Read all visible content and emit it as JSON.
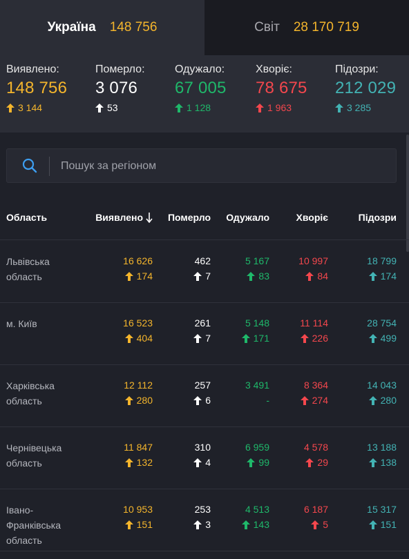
{
  "tabs": [
    {
      "label": "Україна",
      "value": "148 756"
    },
    {
      "label": "Світ",
      "value": "28 170 719"
    }
  ],
  "summary": [
    {
      "label": "Виявлено:",
      "value": "148 756",
      "delta": "3 144",
      "color": "#f4b52c"
    },
    {
      "label": "Померло:",
      "value": "3 076",
      "delta": "53",
      "color": "#ffffff"
    },
    {
      "label": "Одужало:",
      "value": "67 005",
      "delta": "1 128",
      "color": "#1fb86a"
    },
    {
      "label": "Хворіє:",
      "value": "78 675",
      "delta": "1 963",
      "color": "#f4474d"
    },
    {
      "label": "Підозри:",
      "value": "212 029",
      "delta": "3 285",
      "color": "#43b3b4"
    }
  ],
  "search": {
    "placeholder": "Пошук за регіоном",
    "icon": "search-icon"
  },
  "table": {
    "headers": {
      "region": "Область",
      "confirmed": "Виявлено",
      "dead": "Померло",
      "recovered": "Одужало",
      "sick": "Хворіє",
      "suspected": "Підозри"
    },
    "sort_icon": "arrow-down-icon",
    "rows": [
      {
        "region": "Львівська область",
        "confirmed": "16 626",
        "confirmed_d": "174",
        "dead": "462",
        "dead_d": "7",
        "recovered": "5 167",
        "recovered_d": "83",
        "sick": "10 997",
        "sick_d": "84",
        "suspected": "18 799",
        "suspected_d": "174"
      },
      {
        "region": "м. Київ",
        "confirmed": "16 523",
        "confirmed_d": "404",
        "dead": "261",
        "dead_d": "7",
        "recovered": "5 148",
        "recovered_d": "171",
        "sick": "11 114",
        "sick_d": "226",
        "suspected": "28 754",
        "suspected_d": "499"
      },
      {
        "region": "Харківська область",
        "confirmed": "12 112",
        "confirmed_d": "280",
        "dead": "257",
        "dead_d": "6",
        "recovered": "3 491",
        "recovered_d": "-",
        "sick": "8 364",
        "sick_d": "274",
        "suspected": "14 043",
        "suspected_d": "280"
      },
      {
        "region": "Чернівецька область",
        "confirmed": "11 847",
        "confirmed_d": "132",
        "dead": "310",
        "dead_d": "4",
        "recovered": "6 959",
        "recovered_d": "99",
        "sick": "4 578",
        "sick_d": "29",
        "suspected": "13 188",
        "suspected_d": "138"
      },
      {
        "region": "Івано-Франківська область",
        "confirmed": "10 953",
        "confirmed_d": "151",
        "dead": "253",
        "dead_d": "3",
        "recovered": "4 513",
        "recovered_d": "143",
        "sick": "6 187",
        "sick_d": "5",
        "suspected": "15 317",
        "suspected_d": "151"
      }
    ]
  }
}
